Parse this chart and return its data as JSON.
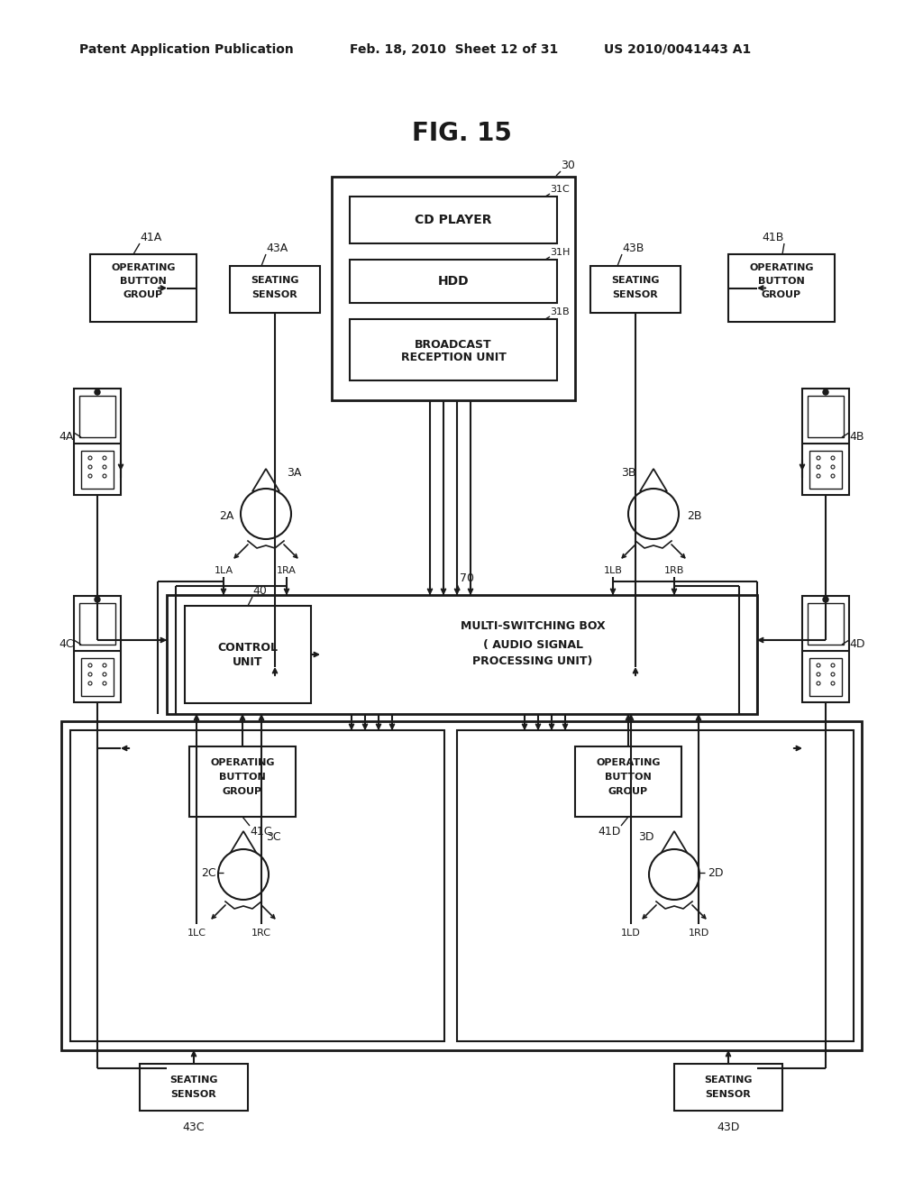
{
  "header_left": "Patent Application Publication",
  "header_mid": "Feb. 18, 2010  Sheet 12 of 31",
  "header_right": "US 2010/0041443 A1",
  "title": "FIG. 15",
  "bg_color": "#ffffff"
}
